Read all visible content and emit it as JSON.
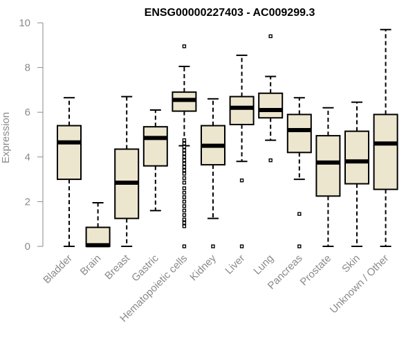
{
  "chart_data": {
    "type": "boxplot",
    "title": "ENSG00000227403 - AC009299.3",
    "xlabel": "",
    "ylabel": "Expression",
    "ylim": [
      0,
      10
    ],
    "yticks": [
      0,
      2,
      4,
      6,
      8,
      10
    ],
    "grid": false,
    "box_fill": "#ede6cf",
    "box_stroke": "#000000",
    "axis_color": "#8a8a8a",
    "categories": [
      "Bladder",
      "Brain",
      "Breast",
      "Gastric",
      "Hematopoietic cells",
      "Kidney",
      "Liver",
      "Lung",
      "Pancreas",
      "Prostate",
      "Skin",
      "Unknown / Other"
    ],
    "boxes": [
      {
        "name": "Bladder",
        "whisker_low": 0,
        "q1": 3.0,
        "median": 4.65,
        "q3": 5.4,
        "whisker_high": 6.65,
        "outliers": []
      },
      {
        "name": "Brain",
        "whisker_low": 0,
        "q1": 0,
        "median": 0.05,
        "q3": 0.85,
        "whisker_high": 1.95,
        "outliers": []
      },
      {
        "name": "Breast",
        "whisker_low": 0,
        "q1": 1.25,
        "median": 2.85,
        "q3": 4.35,
        "whisker_high": 6.7,
        "outliers": []
      },
      {
        "name": "Gastric",
        "whisker_low": 1.6,
        "q1": 3.6,
        "median": 4.85,
        "q3": 5.35,
        "whisker_high": 6.1,
        "outliers": []
      },
      {
        "name": "Hematopoietic cells",
        "whisker_low": 4.5,
        "q1": 6.05,
        "median": 6.55,
        "q3": 6.9,
        "whisker_high": 8.05,
        "outliers": [
          8.95,
          4.75,
          4.6,
          4.45,
          4.3,
          4.15,
          4.0,
          3.85,
          3.7,
          3.55,
          3.4,
          3.25,
          3.05,
          2.85,
          2.6,
          2.4,
          2.2,
          2.0,
          1.8,
          1.6,
          1.4,
          1.2,
          1.05,
          0.9,
          0
        ]
      },
      {
        "name": "Kidney",
        "whisker_low": 1.25,
        "q1": 3.65,
        "median": 4.5,
        "q3": 5.4,
        "whisker_high": 6.6,
        "outliers": [
          0
        ]
      },
      {
        "name": "Liver",
        "whisker_low": 3.8,
        "q1": 5.45,
        "median": 6.2,
        "q3": 6.7,
        "whisker_high": 8.55,
        "outliers": [
          2.95,
          0
        ]
      },
      {
        "name": "Lung",
        "whisker_low": 4.75,
        "q1": 5.75,
        "median": 6.1,
        "q3": 6.85,
        "whisker_high": 7.6,
        "outliers": [
          9.4,
          3.85
        ]
      },
      {
        "name": "Pancreas",
        "whisker_low": 3.0,
        "q1": 4.2,
        "median": 5.2,
        "q3": 5.9,
        "whisker_high": 6.65,
        "outliers": [
          1.45,
          0
        ]
      },
      {
        "name": "Prostate",
        "whisker_low": 0,
        "q1": 2.25,
        "median": 3.75,
        "q3": 4.95,
        "whisker_high": 6.2,
        "outliers": []
      },
      {
        "name": "Skin",
        "whisker_low": 0,
        "q1": 2.8,
        "median": 3.8,
        "q3": 5.15,
        "whisker_high": 6.45,
        "outliers": []
      },
      {
        "name": "Unknown / Other",
        "whisker_low": 0,
        "q1": 2.55,
        "median": 4.6,
        "q3": 5.9,
        "whisker_high": 9.7,
        "outliers": []
      }
    ]
  }
}
